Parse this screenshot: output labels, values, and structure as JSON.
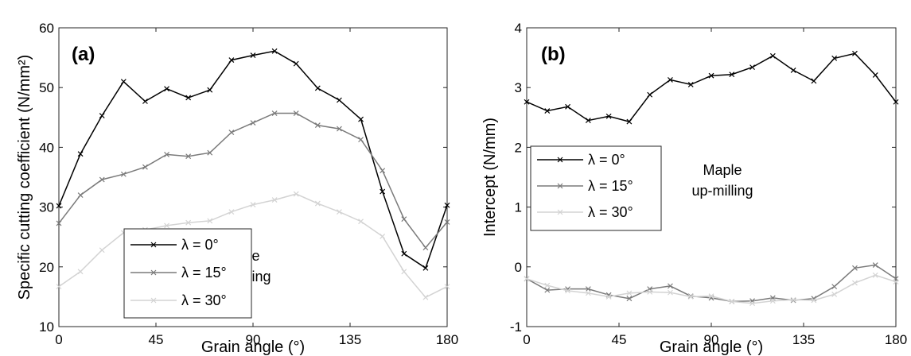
{
  "chart_data": [
    {
      "type": "line",
      "panel_label": "(a)",
      "xlabel": "Grain angle (°)",
      "ylabel": "Specific cutting coefficient (N/mm²)",
      "xlim": [
        0,
        180
      ],
      "ylim": [
        10,
        60
      ],
      "xticks": [
        0,
        45,
        90,
        135,
        180
      ],
      "yticks": [
        10,
        20,
        30,
        40,
        50,
        60
      ],
      "x": [
        0,
        10,
        20,
        30,
        40,
        50,
        60,
        70,
        80,
        90,
        100,
        110,
        120,
        130,
        140,
        150,
        160,
        170,
        180
      ],
      "series": [
        {
          "name": "λ = 0°",
          "color": "#000000",
          "values": [
            30.2,
            38.9,
            45.3,
            51.0,
            47.7,
            49.8,
            48.3,
            49.6,
            54.6,
            55.4,
            56.1,
            54.0,
            49.9,
            47.9,
            44.7,
            32.6,
            22.2,
            19.8,
            30.3
          ]
        },
        {
          "name": "λ = 15°",
          "color": "#7a7a7a",
          "values": [
            27.3,
            32.0,
            34.6,
            35.5,
            36.7,
            38.8,
            38.5,
            39.1,
            42.5,
            44.1,
            45.7,
            45.7,
            43.7,
            43.1,
            41.3,
            36.1,
            28.0,
            23.2,
            27.5
          ]
        },
        {
          "name": "λ = 30°",
          "color": "#d3d3d3",
          "values": [
            16.7,
            19.2,
            22.8,
            25.7,
            26.2,
            26.9,
            27.4,
            27.7,
            29.2,
            30.4,
            31.2,
            32.2,
            30.6,
            29.2,
            27.6,
            25.1,
            19.2,
            14.9,
            16.7
          ]
        }
      ],
      "annotation": [
        "Maple",
        "up-milling"
      ],
      "legend_position": "bottom-left"
    },
    {
      "type": "line",
      "panel_label": "(b)",
      "xlabel": "Grain angle (°)",
      "ylabel": "Intercept (N/mm)",
      "xlim": [
        0,
        180
      ],
      "ylim": [
        -1,
        4
      ],
      "xticks": [
        0,
        45,
        90,
        135,
        180
      ],
      "yticks": [
        -1,
        0,
        1,
        2,
        3,
        4
      ],
      "x": [
        0,
        10,
        20,
        30,
        40,
        50,
        60,
        70,
        80,
        90,
        100,
        110,
        120,
        130,
        140,
        150,
        160,
        170,
        180
      ],
      "series": [
        {
          "name": "λ = 0°",
          "color": "#000000",
          "values": [
            2.76,
            2.61,
            2.68,
            2.45,
            2.52,
            2.43,
            2.88,
            3.13,
            3.05,
            3.2,
            3.22,
            3.34,
            3.53,
            3.29,
            3.11,
            3.49,
            3.57,
            3.21,
            2.76
          ]
        },
        {
          "name": "λ = 15°",
          "color": "#7a7a7a",
          "values": [
            -0.2,
            -0.39,
            -0.37,
            -0.37,
            -0.47,
            -0.53,
            -0.37,
            -0.32,
            -0.49,
            -0.52,
            -0.58,
            -0.57,
            -0.52,
            -0.56,
            -0.53,
            -0.33,
            -0.02,
            0.03,
            -0.2
          ]
        },
        {
          "name": "λ = 30°",
          "color": "#d3d3d3",
          "values": [
            -0.2,
            -0.31,
            -0.4,
            -0.44,
            -0.5,
            -0.44,
            -0.42,
            -0.43,
            -0.5,
            -0.49,
            -0.58,
            -0.61,
            -0.57,
            -0.55,
            -0.56,
            -0.46,
            -0.27,
            -0.14,
            -0.25
          ]
        }
      ],
      "annotation": [
        "Maple",
        "up-milling"
      ],
      "legend_position": "middle-left"
    }
  ]
}
